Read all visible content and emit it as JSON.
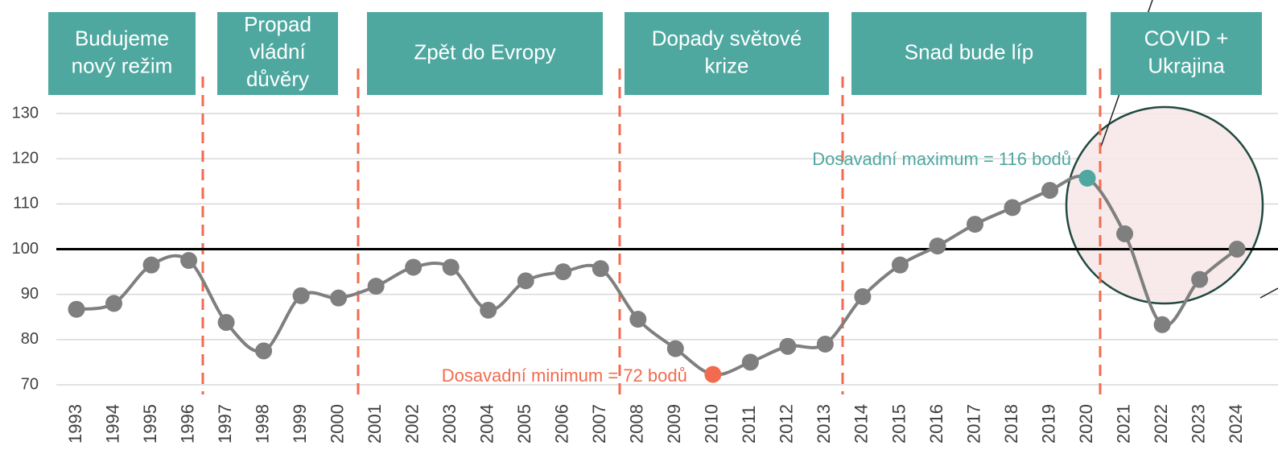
{
  "chart_data": {
    "type": "line",
    "categories": [
      "1993",
      "1994",
      "1995",
      "1996",
      "1997",
      "1998",
      "1999",
      "2000",
      "2001",
      "2002",
      "2003",
      "2004",
      "2005",
      "2006",
      "2007",
      "2008",
      "2009",
      "2010",
      "2011",
      "2012",
      "2013",
      "2014",
      "2015",
      "2016",
      "2017",
      "2018",
      "2019",
      "2020",
      "2021",
      "2022",
      "2023",
      "2024"
    ],
    "values": [
      86.7,
      88,
      96.5,
      97.5,
      83.8,
      77.5,
      89.7,
      89.2,
      91.8,
      96,
      96,
      86.5,
      93,
      95,
      95.7,
      84.5,
      78,
      72.3,
      75,
      78.5,
      79,
      89.5,
      96.5,
      100.7,
      105.5,
      109.2,
      113,
      115.7,
      103.4,
      83.3,
      93.3,
      100
    ],
    "color": "#7f7f7f",
    "ylim": [
      70,
      130
    ],
    "yticks": [
      70,
      80,
      90,
      100,
      110,
      120,
      130
    ],
    "grid": true,
    "reference_line": 100,
    "periods": [
      {
        "lines": [
          "Budujeme",
          "nový režim"
        ]
      },
      {
        "lines": [
          "Propad",
          "vládní",
          "důvěry"
        ]
      },
      {
        "lines": [
          "Zpět do Evropy"
        ]
      },
      {
        "lines": [
          "Dopady světové",
          "krize"
        ]
      },
      {
        "lines": [
          "Snad bude líp"
        ]
      },
      {
        "lines": [
          "COVID +",
          "Ukrajina"
        ]
      }
    ],
    "period_color": "#4ea8a0",
    "max_annotation": {
      "text": "Dosavadní maximum = 116 bodů",
      "color": "#4ea8a0"
    },
    "min_annotation": {
      "text": "Dosavadní minimum = 72 bodů",
      "color": "#f26b4f"
    }
  }
}
